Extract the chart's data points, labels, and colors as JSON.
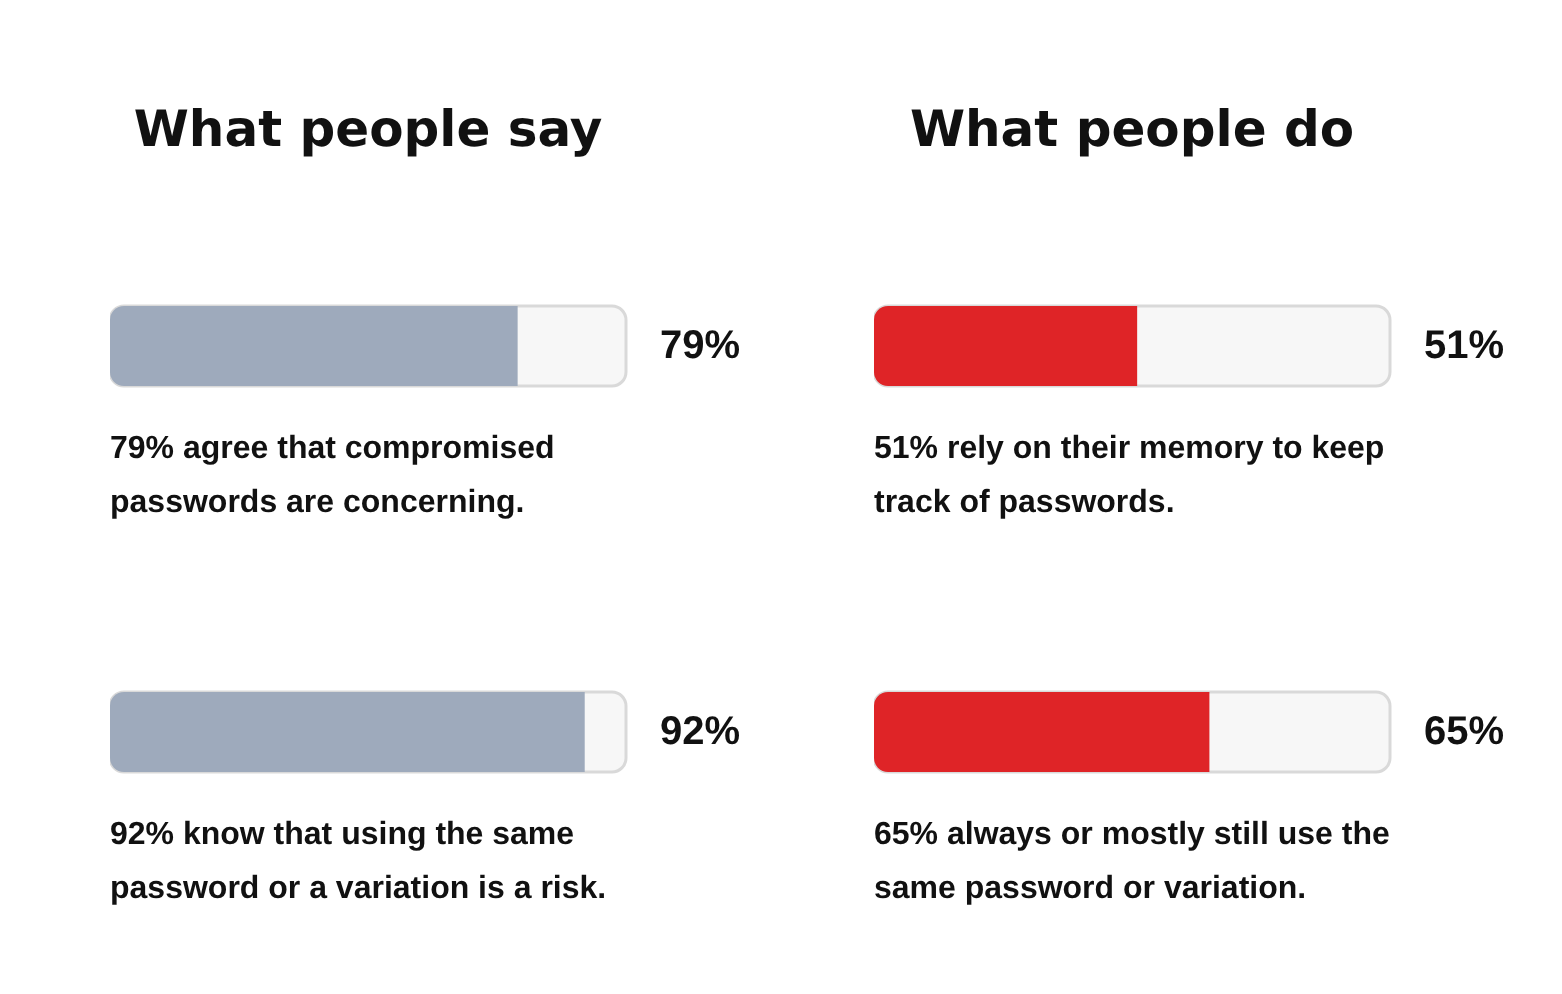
{
  "chart_data": [
    {
      "type": "bar",
      "orientation": "horizontal",
      "title": "What people say",
      "categories": [
        "79% agree that compromised passwords are concerning.",
        "92% know that using the same password or a variation is a risk."
      ],
      "values": [
        79,
        92
      ],
      "value_labels": [
        "79%",
        "92%"
      ],
      "color": "#9eaabc",
      "xlim": [
        0,
        100
      ]
    },
    {
      "type": "bar",
      "orientation": "horizontal",
      "title": "What people do",
      "categories": [
        "51% rely on their memory to keep track of passwords.",
        "65% always or mostly still use the same password or variation."
      ],
      "values": [
        51,
        65
      ],
      "value_labels": [
        "51%",
        "65%"
      ],
      "color": "#df2427",
      "xlim": [
        0,
        100
      ]
    }
  ]
}
